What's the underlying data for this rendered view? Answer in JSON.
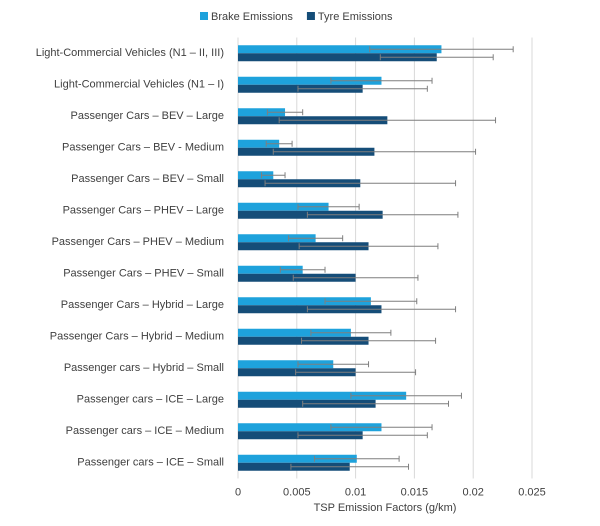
{
  "chart_data": {
    "type": "hbar",
    "x_label": "TSP Emission Factors (g/km)",
    "categories": [
      "Light-Commercial Vehicles (N1 – II, III)",
      "Light-Commercial Vehicles (N1 – I)",
      "Passenger Cars – BEV – Large",
      "Passenger Cars – BEV - Medium",
      "Passenger Cars – BEV – Small",
      "Passenger Cars – PHEV – Large",
      "Passenger Cars – PHEV – Medium",
      "Passenger Cars – PHEV – Small",
      "Passenger Cars – Hybrid – Large",
      "Passenger Cars – Hybrid – Medium",
      "Passenger cars – Hybrid – Small",
      "Passenger cars – ICE – Large",
      "Passenger cars – ICE – Medium",
      "Passenger cars – ICE – Small"
    ],
    "series": [
      {
        "name": "Brake Emissions",
        "color": "#1ea2dc",
        "values": [
          0.0173,
          0.0122,
          0.004,
          0.0035,
          0.003,
          0.0077,
          0.0066,
          0.0055,
          0.0113,
          0.0096,
          0.0081,
          0.0143,
          0.0122,
          0.0101
        ],
        "errors": [
          0.0061,
          0.0043,
          0.0015,
          0.0011,
          0.001,
          0.0026,
          0.0023,
          0.0019,
          0.0039,
          0.0034,
          0.003,
          0.0047,
          0.0043,
          0.0036
        ]
      },
      {
        "name": "Tyre Emissions",
        "color": "#154d78",
        "values": [
          0.0169,
          0.0106,
          0.0127,
          0.0116,
          0.0104,
          0.0123,
          0.0111,
          0.01,
          0.0122,
          0.0111,
          0.01,
          0.0117,
          0.0106,
          0.0095
        ],
        "errors": [
          0.0048,
          0.0055,
          0.0092,
          0.0086,
          0.0081,
          0.0064,
          0.0059,
          0.0053,
          0.0063,
          0.0057,
          0.0051,
          0.0062,
          0.0055,
          0.005
        ]
      }
    ],
    "xlim": [
      0,
      0.025
    ],
    "xticks": [
      0,
      0.005,
      0.01,
      0.015,
      0.02,
      0.025
    ],
    "grid": true,
    "legend": "top"
  }
}
